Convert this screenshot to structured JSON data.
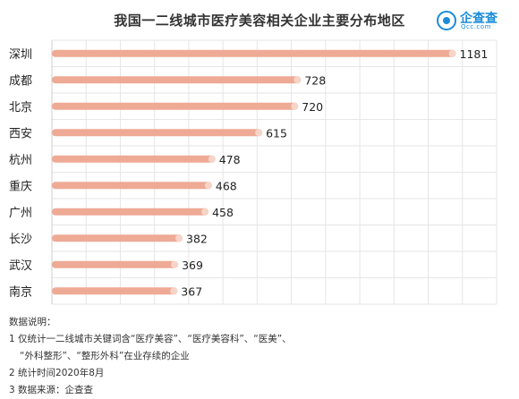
{
  "title": "我国一二线城市医疗美容相关企业主要分布地区",
  "logo": {
    "name": "企查查",
    "domain": "Qcc.com"
  },
  "chart_data": {
    "type": "bar",
    "orientation": "horizontal",
    "categories": [
      "深圳",
      "成都",
      "北京",
      "西安",
      "杭州",
      "重庆",
      "广州",
      "长沙",
      "武汉",
      "南京"
    ],
    "values": [
      1181,
      728,
      720,
      615,
      478,
      468,
      458,
      382,
      369,
      367
    ],
    "data_labels": [
      "1181",
      "728",
      "720",
      "615",
      "478",
      "468",
      "458",
      "382",
      "369",
      "367"
    ],
    "xlim": [
      0,
      1300
    ],
    "grid": true,
    "bar_color": "#eeaa95",
    "bar_end_color": "#f7d4c8"
  },
  "notes": {
    "heading": "数据说明：",
    "line1": "1 仅统计一二线城市关键词含“医疗美容”、“医疗美容科”、“医美”、",
    "line1b": "“外科整形”、“整形外科”在业存续的企业",
    "line2": "2 统计时间2020年8月",
    "line3": "3 数据来源：企查查"
  }
}
